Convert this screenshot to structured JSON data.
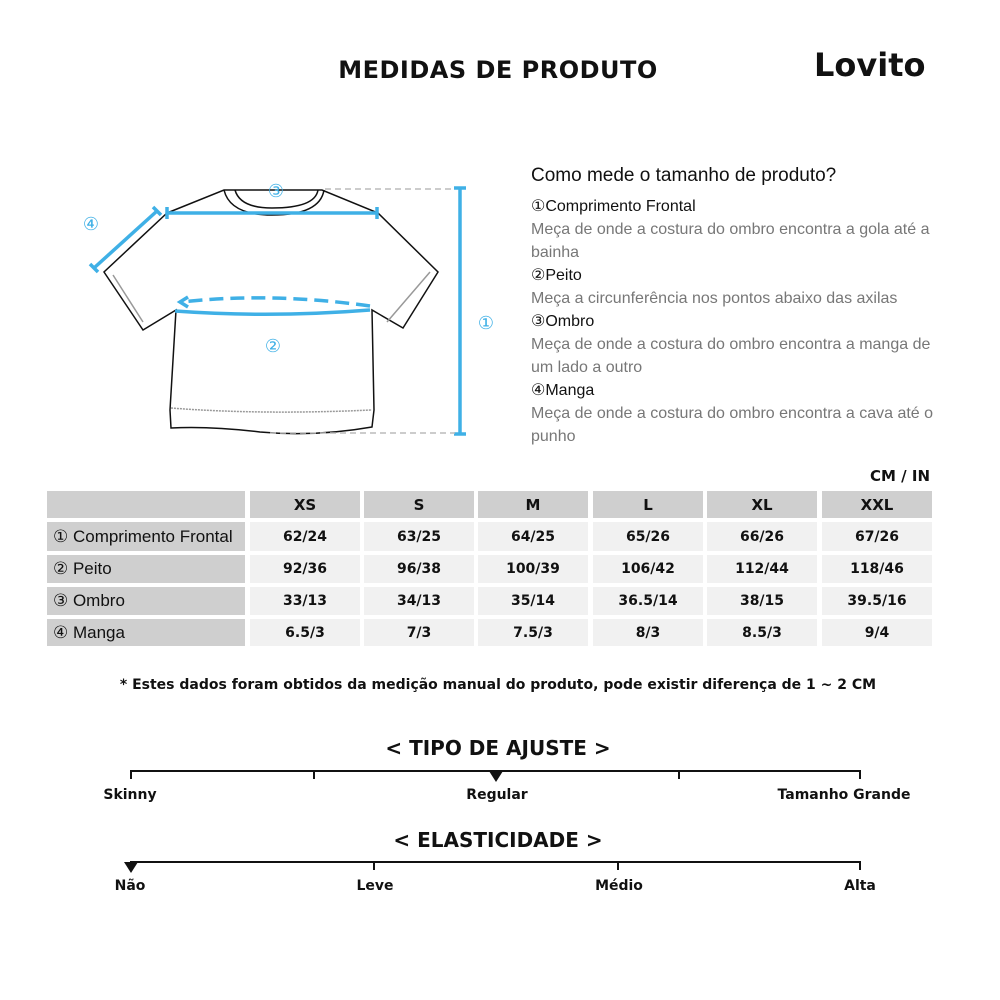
{
  "header": {
    "title": "MEDIDAS DE PRODUTO",
    "logo": "Lovito"
  },
  "guide": {
    "question": "Como mede o tamanho de produto?",
    "items": [
      {
        "marker": "①",
        "name": "Comprimento Frontal",
        "desc": "Meça de onde a costura do ombro encontra a gola até a bainha"
      },
      {
        "marker": "②",
        "name": "Peito",
        "desc": "Meça a circunferência nos pontos abaixo das axilas"
      },
      {
        "marker": "③",
        "name": "Ombro",
        "desc": "Meça de onde a costura do ombro encontra a manga de um lado a outro"
      },
      {
        "marker": "④",
        "name": "Manga",
        "desc": "Meça de onde a costura do ombro encontra a cava até o punho"
      }
    ],
    "diagram_markers": [
      "①",
      "②",
      "③",
      "④"
    ],
    "accent": "#3fb0e6"
  },
  "table": {
    "unit": "CM / IN",
    "sizes": [
      "XS",
      "S",
      "M",
      "L",
      "XL",
      "XXL"
    ],
    "rows": [
      {
        "label": "① Comprimento Frontal",
        "values": [
          "62/24",
          "63/25",
          "64/25",
          "65/26",
          "66/26",
          "67/26"
        ]
      },
      {
        "label": "② Peito",
        "values": [
          "92/36",
          "96/38",
          "100/39",
          "106/42",
          "112/44",
          "118/46"
        ]
      },
      {
        "label": "③ Ombro",
        "values": [
          "33/13",
          "34/13",
          "35/14",
          "36.5/14",
          "38/15",
          "39.5/16"
        ]
      },
      {
        "label": "④ Manga",
        "values": [
          "6.5/3",
          "7/3",
          "7.5/3",
          "8/3",
          "8.5/3",
          "9/4"
        ]
      }
    ]
  },
  "note": "* Estes dados foram obtidos da medição manual do produto, pode existir diferença de 1 ~ 2 CM",
  "fit": {
    "title": "< TIPO DE AJUSTE >",
    "labels": [
      "Skinny",
      "Regular",
      "Tamanho Grande"
    ],
    "selected": "Regular",
    "level": 0.5
  },
  "elasticity": {
    "title": "< ELASTICIDADE >",
    "labels": [
      "Não",
      "Leve",
      "Médio",
      "Alta"
    ],
    "selected": "Não",
    "level": 0
  }
}
